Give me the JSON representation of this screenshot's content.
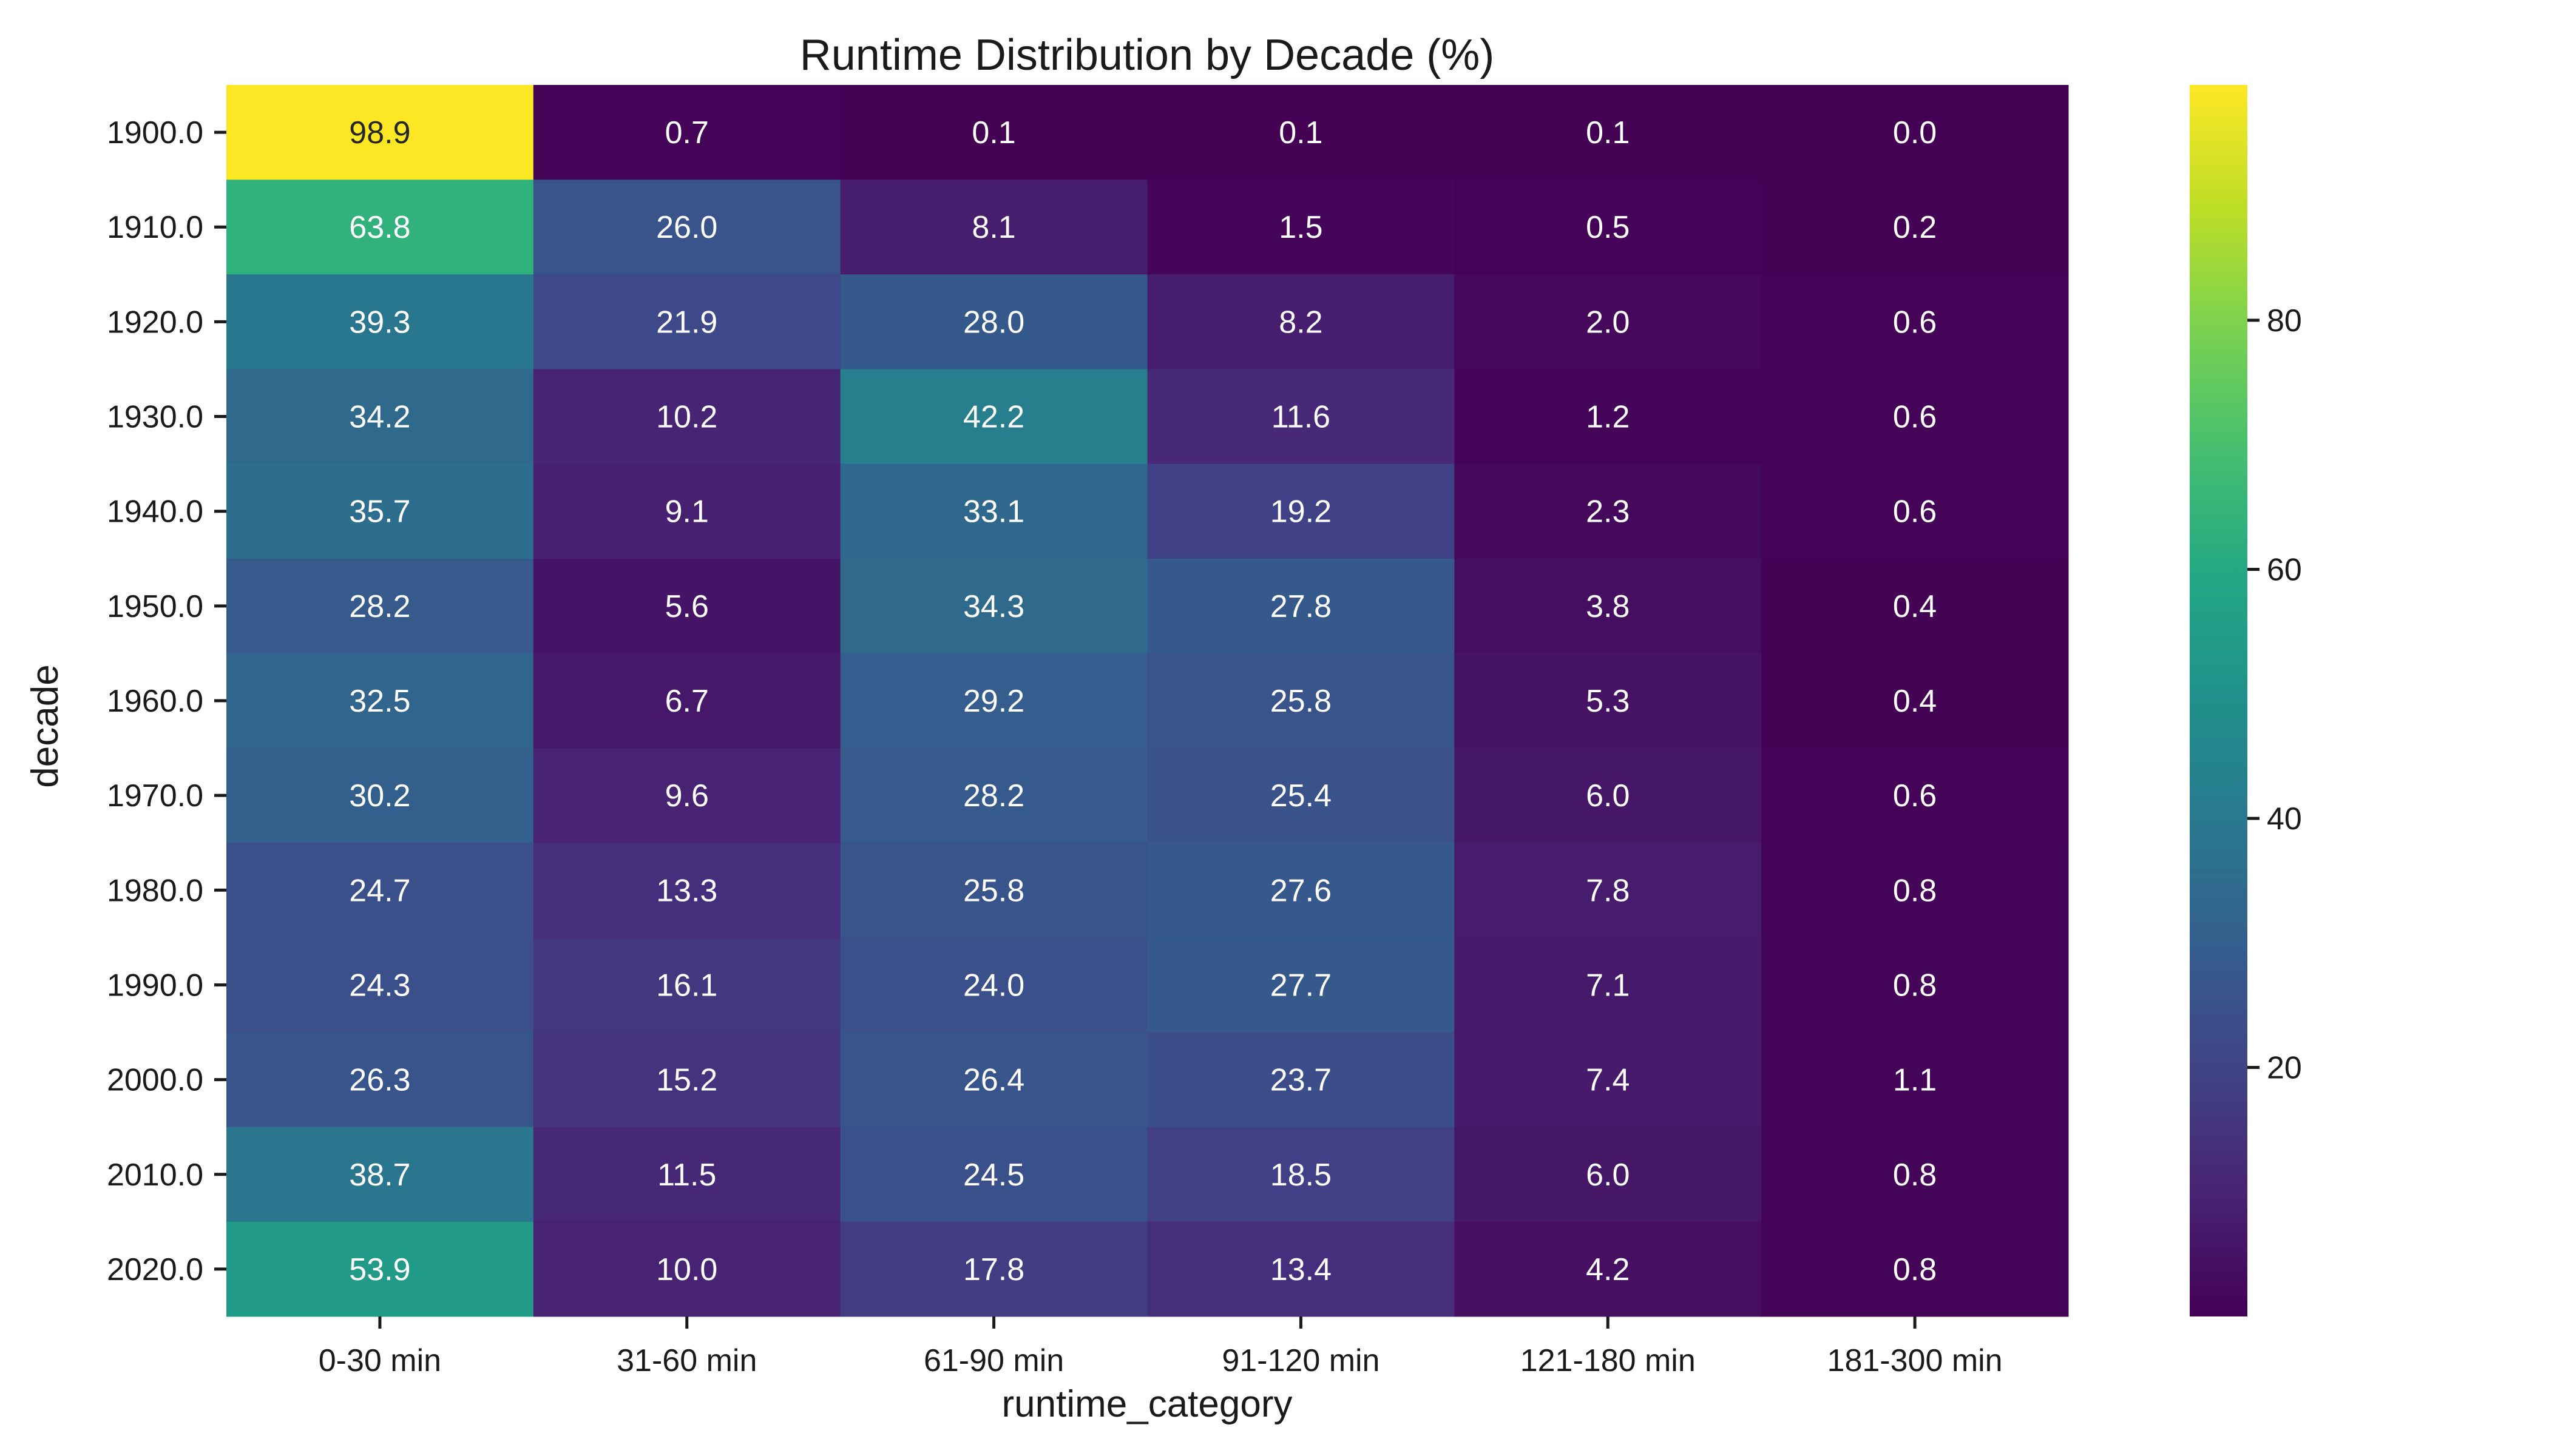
{
  "chart_data": {
    "type": "heatmap",
    "title": "Runtime Distribution by Decade (%)",
    "xlabel": "runtime_category",
    "ylabel": "decade",
    "x_categories": [
      "0-30 min",
      "31-60 min",
      "61-90 min",
      "91-120 min",
      "121-180 min",
      "181-300 min"
    ],
    "y_categories": [
      "1900.0",
      "1910.0",
      "1920.0",
      "1930.0",
      "1940.0",
      "1950.0",
      "1960.0",
      "1970.0",
      "1980.0",
      "1990.0",
      "2000.0",
      "2010.0",
      "2020.0"
    ],
    "values": [
      [
        98.9,
        0.7,
        0.1,
        0.1,
        0.1,
        0.0
      ],
      [
        63.8,
        26.0,
        8.1,
        1.5,
        0.5,
        0.2
      ],
      [
        39.3,
        21.9,
        28.0,
        8.2,
        2.0,
        0.6
      ],
      [
        34.2,
        10.2,
        42.2,
        11.6,
        1.2,
        0.6
      ],
      [
        35.7,
        9.1,
        33.1,
        19.2,
        2.3,
        0.6
      ],
      [
        28.2,
        5.6,
        34.3,
        27.8,
        3.8,
        0.4
      ],
      [
        32.5,
        6.7,
        29.2,
        25.8,
        5.3,
        0.4
      ],
      [
        30.2,
        9.6,
        28.2,
        25.4,
        6.0,
        0.6
      ],
      [
        24.7,
        13.3,
        25.8,
        27.6,
        7.8,
        0.8
      ],
      [
        24.3,
        16.1,
        24.0,
        27.7,
        7.1,
        0.8
      ],
      [
        26.3,
        15.2,
        26.4,
        23.7,
        7.4,
        1.1
      ],
      [
        38.7,
        11.5,
        24.5,
        18.5,
        6.0,
        0.8
      ],
      [
        53.9,
        10.0,
        17.8,
        13.4,
        4.2,
        0.8
      ]
    ],
    "colormap": "viridis",
    "value_range": [
      0.0,
      98.9
    ],
    "colorbar_ticks": [
      20,
      40,
      60,
      80
    ],
    "annotations": true,
    "grid": false
  }
}
